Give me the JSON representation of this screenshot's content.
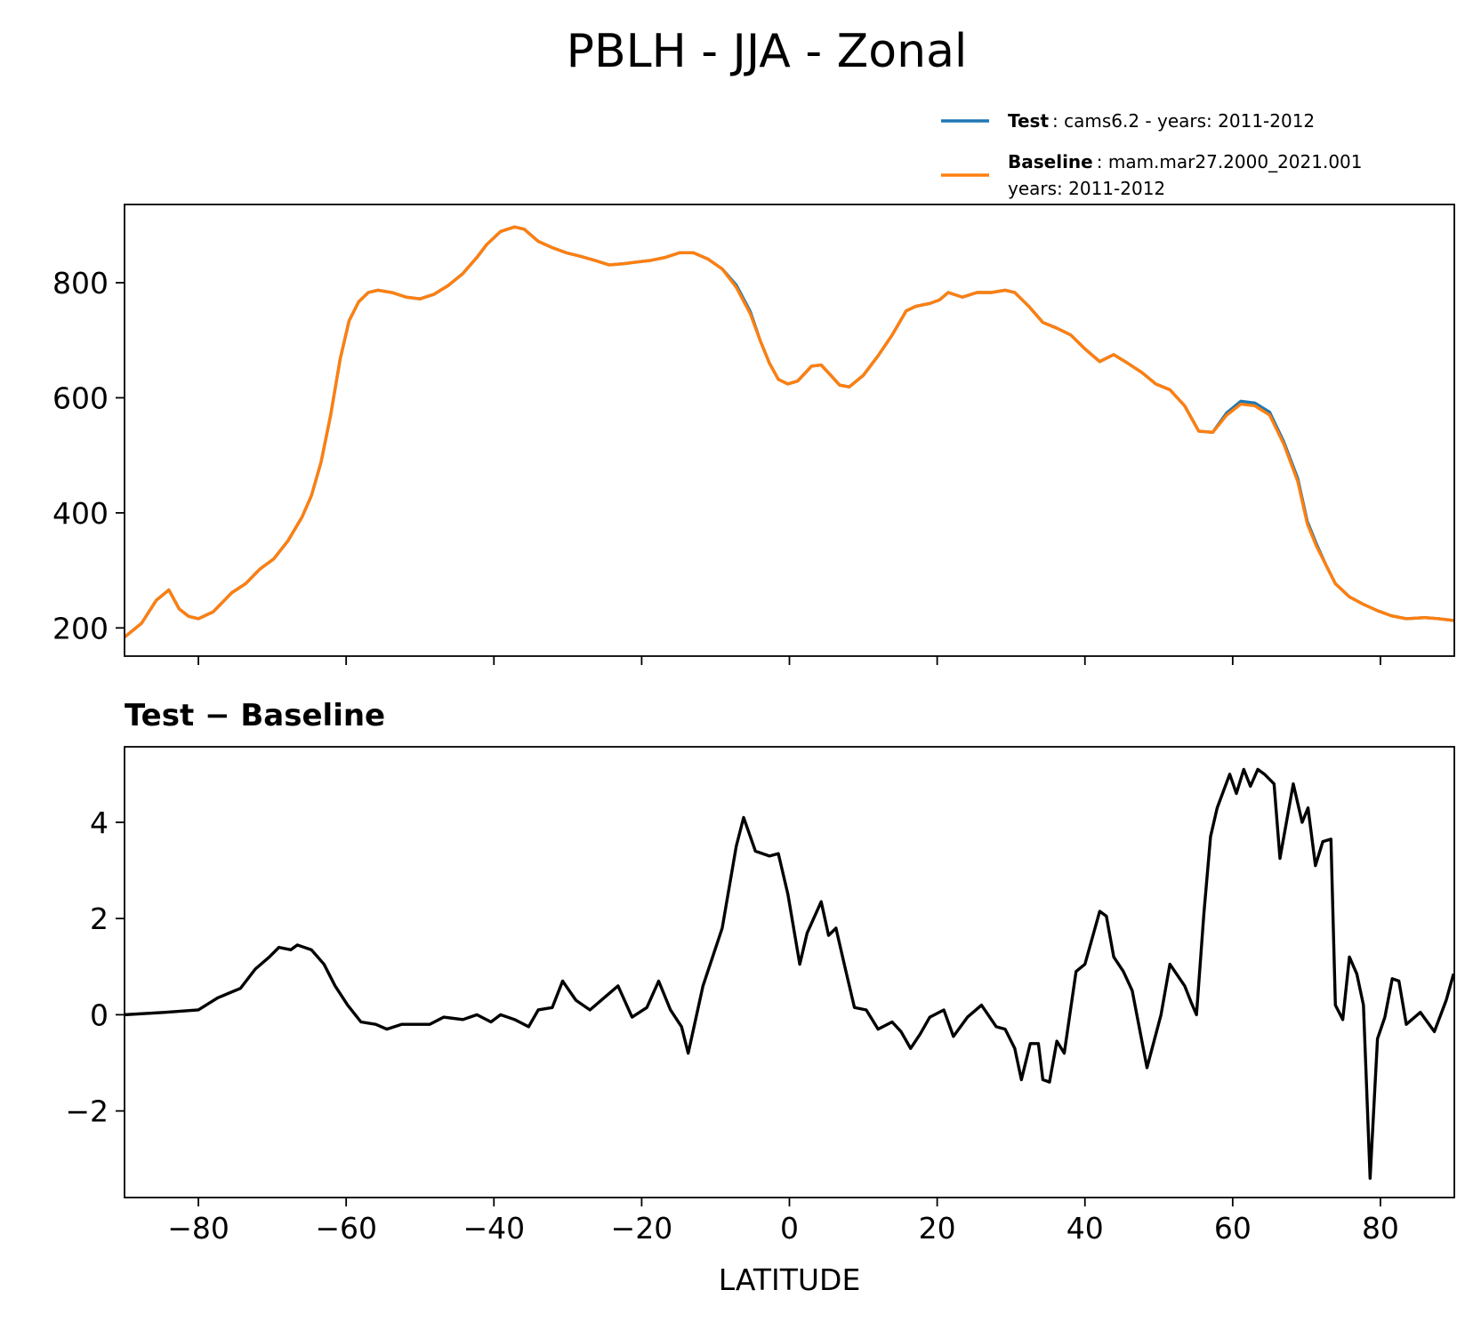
{
  "chart_data": [
    {
      "type": "line",
      "title": "PBLH - JJA - Zonal",
      "x": [
        -90,
        -87.7,
        -85.7,
        -84,
        -82.6,
        -81.3,
        -80,
        -78,
        -75.5,
        -73.6,
        -71.7,
        -69.8,
        -67.9,
        -66,
        -64.7,
        -63.4,
        -62.1,
        -60.8,
        -59.6,
        -58.3,
        -57,
        -55.7,
        -53.8,
        -51.9,
        -50,
        -48.1,
        -46.2,
        -44.2,
        -42.3,
        -41,
        -39.1,
        -37.2,
        -35.9,
        -34,
        -32.1,
        -30.2,
        -28.3,
        -26.4,
        -24.4,
        -22.5,
        -20.6,
        -18.7,
        -16.8,
        -14.9,
        -13,
        -11,
        -9.1,
        -7.2,
        -5.3,
        -4,
        -2.7,
        -1.5,
        -0.2,
        1.1,
        3,
        4.3,
        5.6,
        6.8,
        8.1,
        10,
        12,
        13.9,
        15.8,
        17.1,
        19,
        20.3,
        21.5,
        23.4,
        25.4,
        27.3,
        29.2,
        30.5,
        32.4,
        34.3,
        36.2,
        38.1,
        40,
        42,
        43.9,
        45.8,
        47.7,
        49.6,
        51.5,
        53.5,
        55.4,
        57.3,
        59.2,
        61.1,
        63,
        65,
        66.9,
        68.8,
        70.1,
        71.3,
        72.6,
        73.9,
        75.8,
        77.7,
        79.6,
        81.5,
        83.5,
        86,
        87.9,
        89.9
      ],
      "series": [
        {
          "name": "Test",
          "description": [
            ": cams6.2 - years: 2011-2012"
          ],
          "color": "#1f77b4",
          "values": [
            184,
            208,
            248,
            266,
            233,
            220,
            216,
            228,
            261,
            277,
            302,
            320,
            351,
            392,
            430,
            488,
            570,
            668,
            734,
            767,
            783,
            787,
            783,
            775,
            772,
            780,
            795,
            816,
            844,
            866,
            889,
            897,
            893,
            872,
            861,
            852,
            846,
            839,
            831,
            833,
            836,
            839,
            844,
            852,
            852,
            841,
            824,
            796,
            750,
            701,
            660,
            632,
            624,
            629,
            655,
            657,
            639,
            622,
            619,
            639,
            673,
            709,
            751,
            759,
            764,
            770,
            783,
            775,
            783,
            783,
            787,
            783,
            759,
            731,
            721,
            709,
            685,
            663,
            675,
            660,
            644,
            624,
            614,
            586,
            542,
            540,
            574,
            594,
            591,
            575,
            524,
            460,
            385,
            347,
            310,
            277,
            254,
            241,
            230,
            221,
            216,
            218,
            216,
            213
          ]
        },
        {
          "name": "Baseline",
          "description": [
            ": mam.mar27.2000_2021.001",
            "years: 2011-2012"
          ],
          "color": "#ff7f0e",
          "values": [
            184,
            208,
            248,
            266,
            233,
            220,
            216,
            228,
            261,
            277,
            302,
            320,
            351,
            392,
            430,
            488,
            570,
            668,
            734,
            767,
            783,
            787,
            783,
            775,
            772,
            780,
            795,
            816,
            844,
            866,
            889,
            897,
            893,
            872,
            861,
            852,
            846,
            839,
            831,
            833,
            836,
            839,
            844,
            852,
            852,
            841,
            824,
            792,
            746,
            701,
            660,
            632,
            624,
            629,
            655,
            657,
            639,
            622,
            619,
            639,
            673,
            709,
            751,
            759,
            764,
            770,
            783,
            775,
            783,
            783,
            787,
            783,
            759,
            731,
            721,
            709,
            685,
            663,
            675,
            660,
            644,
            624,
            614,
            586,
            542,
            540,
            570,
            589,
            586,
            570,
            520,
            455,
            381,
            343,
            310,
            277,
            254,
            241,
            230,
            221,
            216,
            218,
            216,
            213
          ]
        }
      ],
      "xlim": [
        -90,
        90
      ],
      "ylim": [
        151,
        936
      ],
      "xticks": [
        -80,
        -60,
        -40,
        -20,
        0,
        20,
        40,
        60,
        80
      ],
      "yticks": [
        200,
        400,
        600,
        800
      ]
    },
    {
      "type": "line",
      "title": "Test − Baseline",
      "xlabel": "LATITUDE",
      "x": [
        -90,
        -84.5,
        -80,
        -77.4,
        -74.3,
        -72.3,
        -70.4,
        -69.1,
        -67.5,
        -66.6,
        -64.7,
        -63,
        -61.5,
        -59.8,
        -58,
        -56,
        -54.5,
        -52.5,
        -48.7,
        -46.8,
        -44.2,
        -42.3,
        -40.4,
        -39.1,
        -37.2,
        -35.3,
        -34,
        -32.1,
        -30.7,
        -28.9,
        -27,
        -25.1,
        -23.2,
        -21.3,
        -19.3,
        -17.7,
        -16.1,
        -14.6,
        -13.7,
        -11.7,
        -9.1,
        -7.2,
        -6.2,
        -4.6,
        -2.7,
        -1.5,
        -0.2,
        1.4,
        2.4,
        4.3,
        5.3,
        6.3,
        7.5,
        8.8,
        10.4,
        12,
        13.9,
        15.1,
        16.4,
        17.7,
        19,
        20.9,
        22.2,
        24.1,
        26,
        28,
        29.2,
        30.5,
        31.4,
        32.6,
        33.7,
        34.3,
        35.2,
        36.2,
        37.2,
        38.8,
        40,
        42,
        42.9,
        43.9,
        45.2,
        46.4,
        48.4,
        50.3,
        51.5,
        53.5,
        54.4,
        55.1,
        56.1,
        57,
        57.9,
        59.6,
        60.5,
        61.5,
        62.4,
        63.4,
        64.3,
        65.6,
        66.4,
        68.2,
        69.4,
        70.2,
        71.2,
        72.2,
        73.3,
        73.9,
        74.9,
        75.8,
        76.8,
        77.7,
        78.6,
        79.6,
        80.6,
        81.6,
        82.5,
        83.5,
        85.4,
        87.3,
        88.9,
        89.9
      ],
      "series": [
        {
          "color": "#000000",
          "values": [
            0,
            0.05,
            0.1,
            0.35,
            0.55,
            0.95,
            1.2,
            1.4,
            1.35,
            1.45,
            1.35,
            1.05,
            0.6,
            0.2,
            -0.15,
            -0.2,
            -0.3,
            -0.2,
            -0.2,
            -0.05,
            -0.1,
            0,
            -0.15,
            0,
            -0.1,
            -0.25,
            0.1,
            0.15,
            0.7,
            0.3,
            0.1,
            0.35,
            0.6,
            -0.05,
            0.15,
            0.7,
            0.1,
            -0.25,
            -0.8,
            0.6,
            1.8,
            3.5,
            4.1,
            3.4,
            3.3,
            3.35,
            2.5,
            1.05,
            1.7,
            2.35,
            1.65,
            1.8,
            1.0,
            0.15,
            0.1,
            -0.3,
            -0.15,
            -0.35,
            -0.7,
            -0.4,
            -0.05,
            0.1,
            -0.45,
            -0.05,
            0.2,
            -0.25,
            -0.3,
            -0.7,
            -1.35,
            -0.6,
            -0.6,
            -1.35,
            -1.4,
            -0.55,
            -0.8,
            0.9,
            1.05,
            2.15,
            2.05,
            1.2,
            0.9,
            0.5,
            -1.1,
            0,
            1.05,
            0.6,
            0.25,
            0,
            2.1,
            3.7,
            4.3,
            5.0,
            4.6,
            5.1,
            4.75,
            5.1,
            5.0,
            4.8,
            3.25,
            4.8,
            4.0,
            4.3,
            3.1,
            3.6,
            3.65,
            0.2,
            -0.1,
            1.2,
            0.85,
            0.2,
            -3.4,
            -0.5,
            -0.05,
            0.75,
            0.7,
            -0.2,
            0.05,
            -0.35,
            0.3,
            0.85
          ]
        }
      ],
      "xlim": [
        -90,
        90
      ],
      "ylim": [
        -3.8,
        5.57
      ],
      "xticks": [
        {
          "value": -80,
          "label": "−80"
        },
        {
          "value": -60,
          "label": "−60"
        },
        {
          "value": -40,
          "label": "−40"
        },
        {
          "value": -20,
          "label": "−20"
        },
        0,
        20,
        40,
        60,
        80
      ],
      "yticks": [
        {
          "value": -2,
          "label": "−2"
        },
        0,
        2,
        4
      ]
    }
  ]
}
